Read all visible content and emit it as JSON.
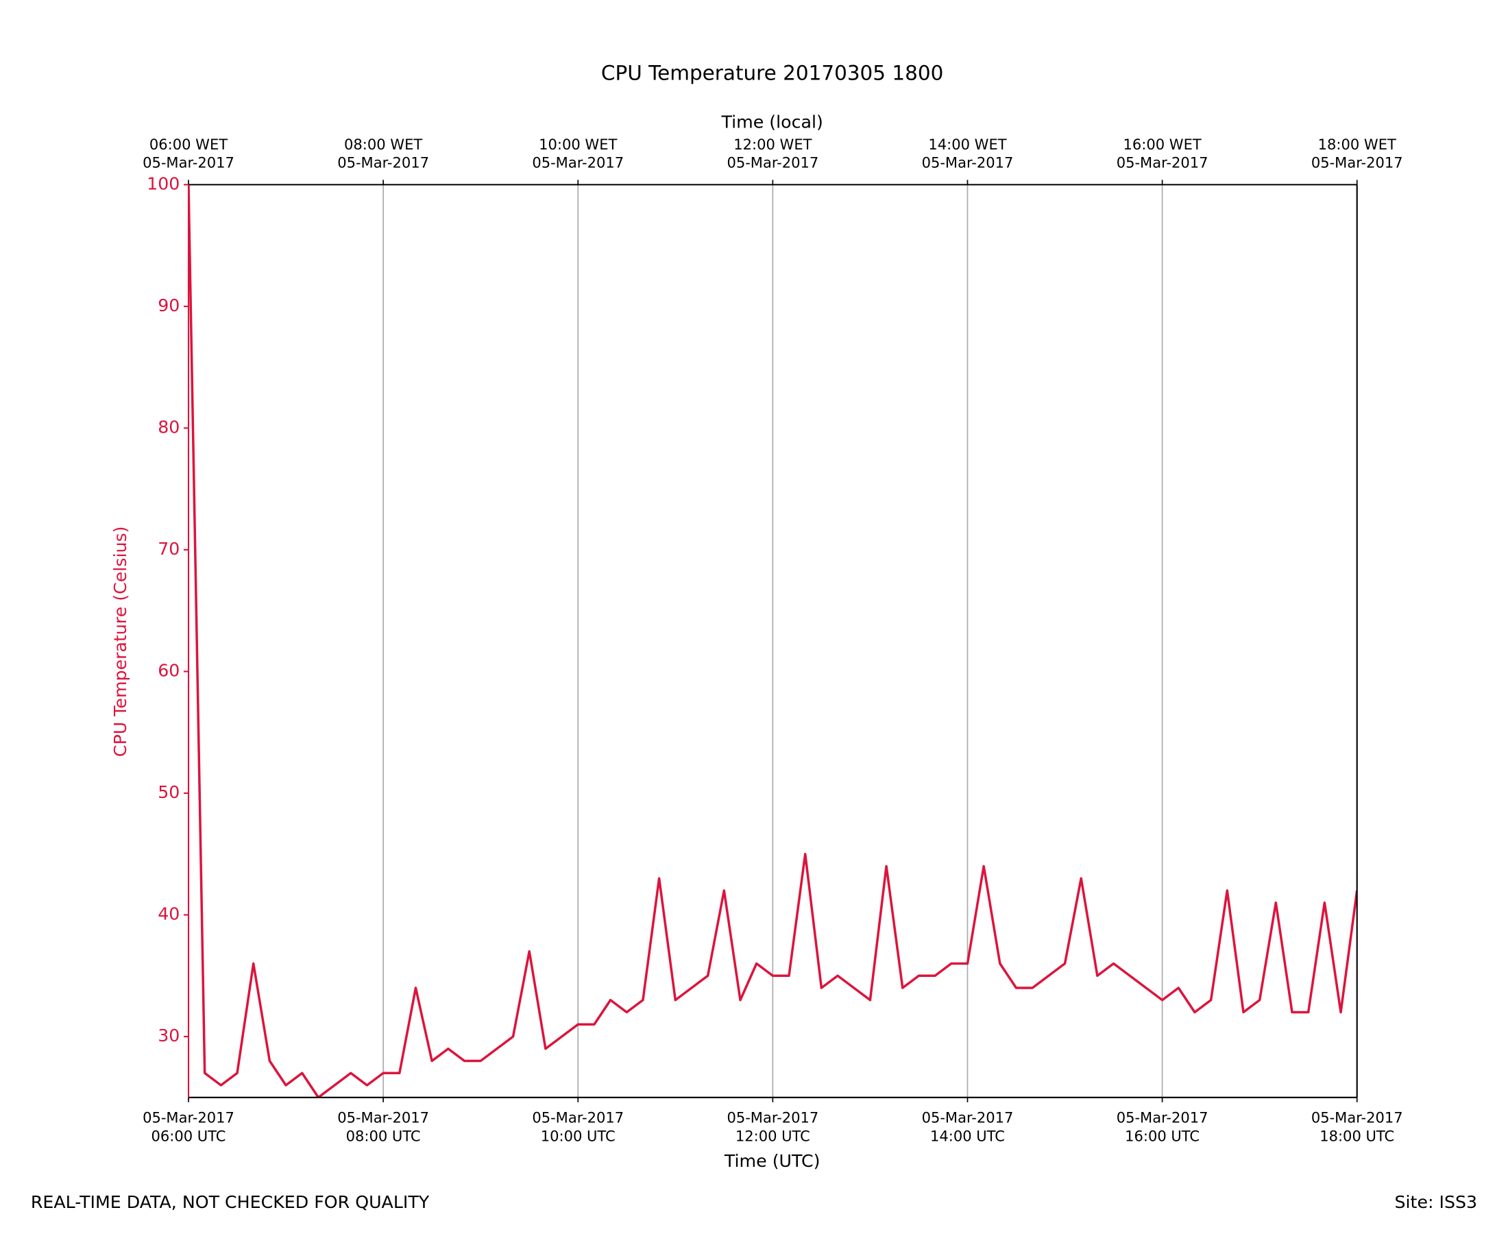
{
  "chart_data": {
    "type": "line",
    "title": "CPU Temperature 20170305 1800",
    "xlabel": "Time (UTC)",
    "x2label": "Time (local)",
    "ylabel": "CPU Temperature (Celsius)",
    "footer_left": "REAL-TIME DATA, NOT CHECKED FOR QUALITY",
    "footer_right": "Site: ISS3",
    "color": "#dc143c",
    "grid": true,
    "x": [
      "2017-03-05 06:00",
      "2017-03-05 06:10",
      "2017-03-05 06:20",
      "2017-03-05 06:30",
      "2017-03-05 06:40",
      "2017-03-05 06:50",
      "2017-03-05 07:00",
      "2017-03-05 07:10",
      "2017-03-05 07:20",
      "2017-03-05 07:30",
      "2017-03-05 07:40",
      "2017-03-05 07:50",
      "2017-03-05 08:00",
      "2017-03-05 08:10",
      "2017-03-05 08:20",
      "2017-03-05 08:30",
      "2017-03-05 08:40",
      "2017-03-05 08:50",
      "2017-03-05 09:00",
      "2017-03-05 09:10",
      "2017-03-05 09:20",
      "2017-03-05 09:30",
      "2017-03-05 09:40",
      "2017-03-05 09:50",
      "2017-03-05 10:00",
      "2017-03-05 10:10",
      "2017-03-05 10:20",
      "2017-03-05 10:30",
      "2017-03-05 10:40",
      "2017-03-05 10:50",
      "2017-03-05 11:00",
      "2017-03-05 11:10",
      "2017-03-05 11:20",
      "2017-03-05 11:30",
      "2017-03-05 11:40",
      "2017-03-05 11:50",
      "2017-03-05 12:00",
      "2017-03-05 12:10",
      "2017-03-05 12:20",
      "2017-03-05 12:30",
      "2017-03-05 12:40",
      "2017-03-05 12:50",
      "2017-03-05 13:00",
      "2017-03-05 13:10",
      "2017-03-05 13:20",
      "2017-03-05 13:30",
      "2017-03-05 13:40",
      "2017-03-05 13:50",
      "2017-03-05 14:00",
      "2017-03-05 14:10",
      "2017-03-05 14:20",
      "2017-03-05 14:30",
      "2017-03-05 14:40",
      "2017-03-05 14:50",
      "2017-03-05 15:00",
      "2017-03-05 15:10",
      "2017-03-05 15:20",
      "2017-03-05 15:30",
      "2017-03-05 15:40",
      "2017-03-05 15:50",
      "2017-03-05 16:00",
      "2017-03-05 16:10",
      "2017-03-05 16:20",
      "2017-03-05 16:30",
      "2017-03-05 16:40",
      "2017-03-05 16:50",
      "2017-03-05 17:00",
      "2017-03-05 17:10",
      "2017-03-05 17:20",
      "2017-03-05 17:30",
      "2017-03-05 17:40",
      "2017-03-05 17:50",
      "2017-03-05 18:00"
    ],
    "values": [
      100,
      27,
      26,
      27,
      36,
      28,
      26,
      27,
      25,
      26,
      27,
      26,
      27,
      27,
      34,
      28,
      29,
      28,
      28,
      29,
      30,
      37,
      29,
      30,
      31,
      31,
      33,
      32,
      33,
      43,
      33,
      34,
      35,
      42,
      33,
      36,
      35,
      35,
      45,
      34,
      35,
      34,
      33,
      44,
      34,
      35,
      35,
      36,
      36,
      44,
      36,
      34,
      34,
      35,
      36,
      43,
      35,
      36,
      35,
      34,
      33,
      34,
      32,
      33,
      42,
      32,
      33,
      41,
      32,
      32,
      41,
      32,
      42
    ],
    "xlim": [
      "2017-03-05 06:00",
      "2017-03-05 18:00"
    ],
    "xticks": [
      {
        "value": "2017-03-05 06:00",
        "label": [
          "05-Mar-2017",
          "06:00 UTC"
        ]
      },
      {
        "value": "2017-03-05 08:00",
        "label": [
          "05-Mar-2017",
          "08:00 UTC"
        ]
      },
      {
        "value": "2017-03-05 10:00",
        "label": [
          "05-Mar-2017",
          "10:00 UTC"
        ]
      },
      {
        "value": "2017-03-05 12:00",
        "label": [
          "05-Mar-2017",
          "12:00 UTC"
        ]
      },
      {
        "value": "2017-03-05 14:00",
        "label": [
          "05-Mar-2017",
          "14:00 UTC"
        ]
      },
      {
        "value": "2017-03-05 16:00",
        "label": [
          "05-Mar-2017",
          "16:00 UTC"
        ]
      },
      {
        "value": "2017-03-05 18:00",
        "label": [
          "05-Mar-2017",
          "18:00 UTC"
        ]
      }
    ],
    "x2ticks": [
      {
        "value": "2017-03-05 06:00",
        "label": [
          "06:00 WET",
          "05-Mar-2017"
        ]
      },
      {
        "value": "2017-03-05 08:00",
        "label": [
          "08:00 WET",
          "05-Mar-2017"
        ]
      },
      {
        "value": "2017-03-05 10:00",
        "label": [
          "10:00 WET",
          "05-Mar-2017"
        ]
      },
      {
        "value": "2017-03-05 12:00",
        "label": [
          "12:00 WET",
          "05-Mar-2017"
        ]
      },
      {
        "value": "2017-03-05 14:00",
        "label": [
          "14:00 WET",
          "05-Mar-2017"
        ]
      },
      {
        "value": "2017-03-05 16:00",
        "label": [
          "16:00 WET",
          "05-Mar-2017"
        ]
      },
      {
        "value": "2017-03-05 18:00",
        "label": [
          "18:00 WET",
          "05-Mar-2017"
        ]
      }
    ],
    "ylim": [
      25,
      100
    ],
    "yticks": [
      30,
      40,
      50,
      60,
      70,
      80,
      90,
      100
    ]
  }
}
